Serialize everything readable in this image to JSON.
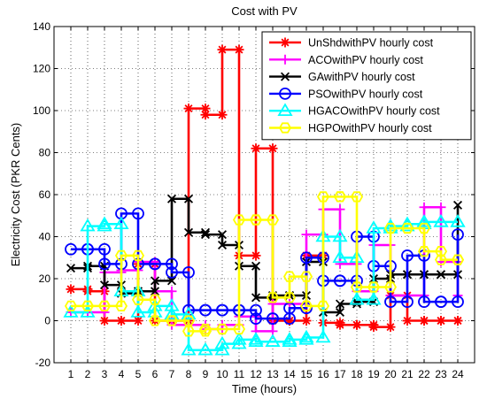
{
  "chart_data": {
    "type": "line",
    "title": "Cost with PV",
    "xlabel": "Time (hours)",
    "ylabel": "Electricity Cost (PKR Cents)",
    "xlim": [
      0,
      25
    ],
    "ylim": [
      -20,
      140
    ],
    "x_ticks": [
      1,
      2,
      3,
      4,
      5,
      6,
      7,
      8,
      9,
      10,
      11,
      12,
      13,
      14,
      15,
      16,
      17,
      18,
      19,
      20,
      21,
      22,
      23,
      24
    ],
    "y_ticks": [
      -20,
      0,
      20,
      40,
      60,
      80,
      100,
      120,
      140
    ],
    "grid": true,
    "step_style": "stairs",
    "legend_position": "top-right",
    "x": [
      1,
      2,
      3,
      4,
      5,
      6,
      7,
      8,
      9,
      10,
      11,
      12,
      13,
      14,
      15,
      16,
      17,
      18,
      19,
      20,
      21,
      22,
      23,
      24
    ],
    "series": [
      {
        "name": "UnShdwithPV hourly cost",
        "color": "#ff0000",
        "marker": "asterisk",
        "values": [
          15,
          14,
          0,
          0,
          27,
          0,
          0,
          101,
          98,
          129,
          31,
          82,
          0,
          0,
          31,
          -1,
          -2,
          -2,
          -3,
          12,
          0,
          0,
          0,
          0
        ]
      },
      {
        "name": "ACOwithPV hourly cost",
        "color": "#ff00ff",
        "marker": "plus",
        "values": [
          4,
          4,
          23,
          24,
          28,
          14,
          -2,
          -2,
          -4,
          -2,
          2,
          -5,
          8,
          8,
          41,
          53,
          27,
          14,
          36,
          12,
          12,
          54,
          28,
          12
        ]
      },
      {
        "name": "GAwithPV hourly cost",
        "color": "#000000",
        "marker": "x",
        "values": [
          25,
          26,
          17,
          13,
          14,
          19,
          58,
          42,
          41,
          36,
          26,
          11,
          12,
          12,
          28,
          4,
          8,
          9,
          20,
          22,
          22,
          22,
          22,
          55
        ]
      },
      {
        "name": "PSOwithPV hourly cost",
        "color": "#0000ff",
        "marker": "circle",
        "values": [
          34,
          34,
          27,
          51,
          27,
          27,
          23,
          5,
          5,
          5,
          5,
          1,
          1,
          6,
          30,
          19,
          19,
          40,
          26,
          9,
          31,
          9,
          9,
          41
        ]
      },
      {
        "name": "HGACOwithPV hourly cost",
        "color": "#00ffff",
        "marker": "triangle",
        "values": [
          4,
          45,
          46,
          14,
          4,
          7,
          3,
          -14,
          -14,
          -11,
          -9,
          -10,
          -10,
          -9,
          -8,
          40,
          30,
          10,
          44,
          45,
          46,
          47,
          47,
          47
        ]
      },
      {
        "name": "HGPOwithPV hourly cost",
        "color": "#ffff00",
        "marker": "hexagon",
        "values": [
          7,
          7,
          7,
          31,
          10,
          0,
          0,
          -5,
          -4,
          -4,
          48,
          48,
          11,
          21,
          7,
          59,
          59,
          16,
          16,
          44,
          44,
          33,
          29,
          29
        ]
      }
    ]
  }
}
